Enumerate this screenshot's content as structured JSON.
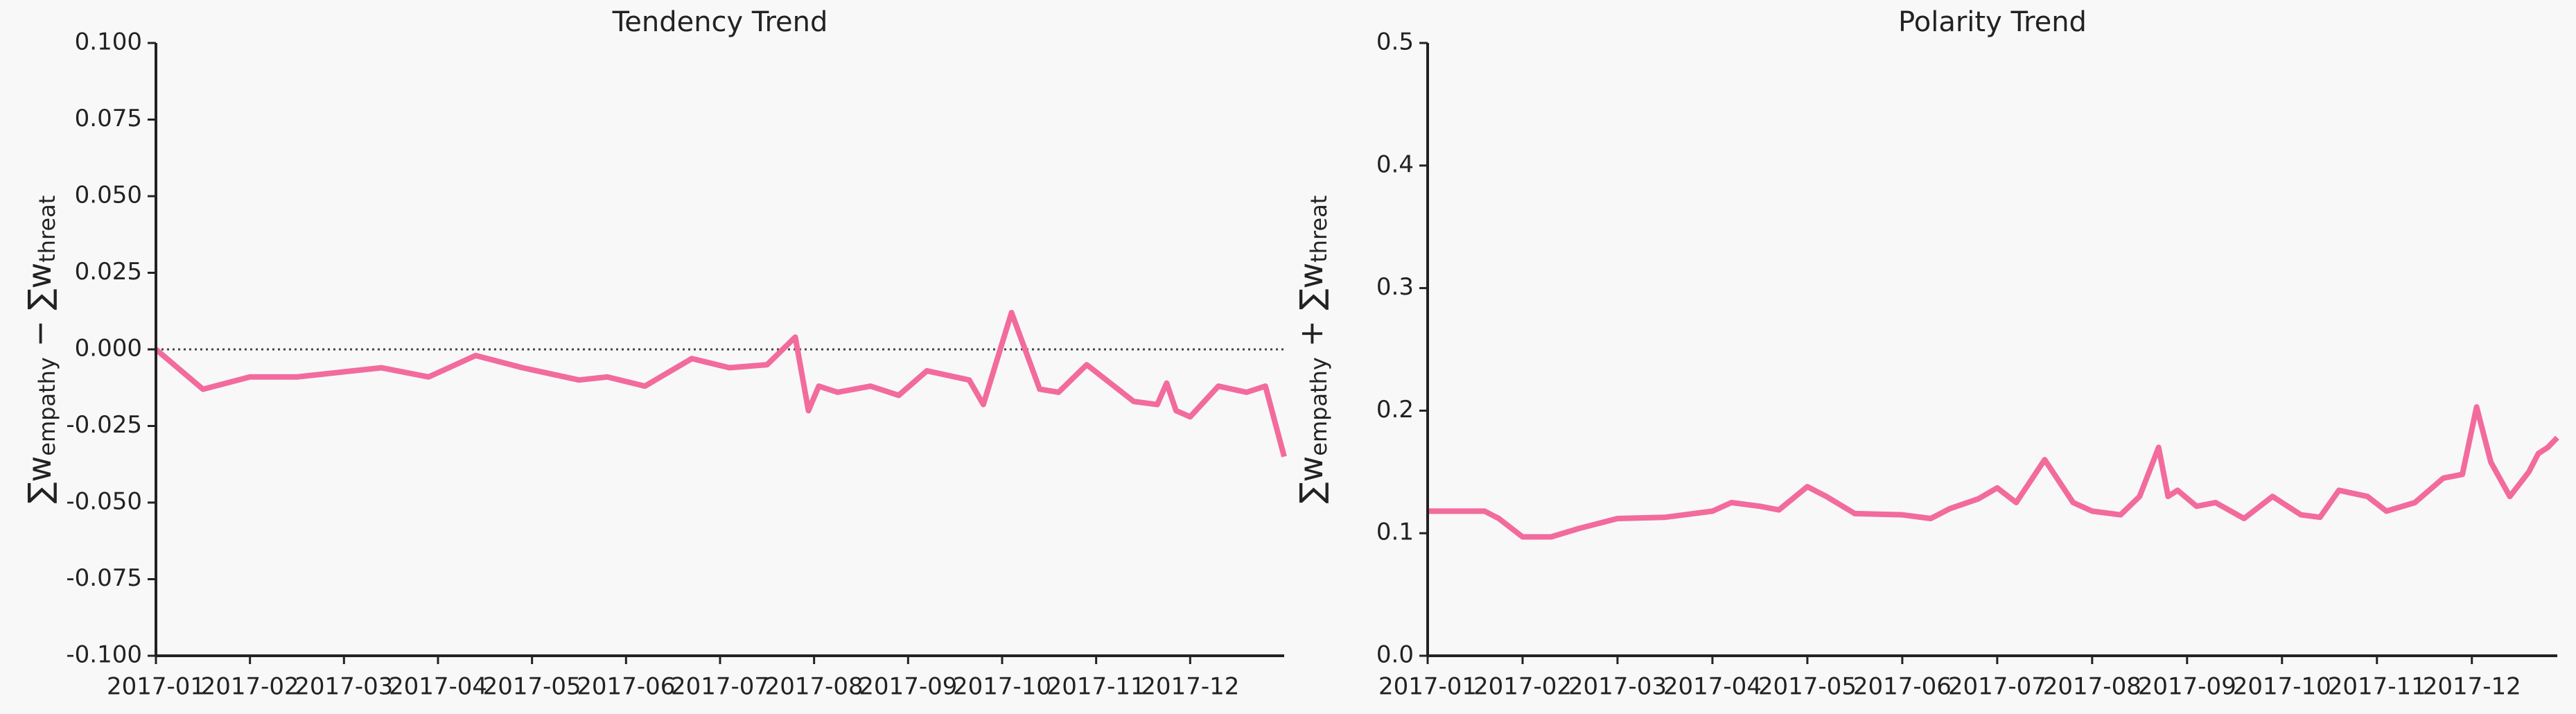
{
  "chart_data": [
    {
      "type": "line",
      "title": "Tendency Trend",
      "ylabel": [
        "∑w",
        "empathy",
        " − ∑w",
        "threat"
      ],
      "x": [
        0,
        0.5,
        1,
        1.5,
        2.4,
        2.9,
        3.4,
        3.9,
        4.5,
        4.8,
        5.2,
        5.7,
        6.1,
        6.5,
        6.8,
        6.94,
        7.05,
        7.25,
        7.6,
        7.9,
        8.2,
        8.65,
        8.8,
        9.1,
        9.4,
        9.6,
        9.9,
        10.4,
        10.65,
        10.75,
        10.85,
        11,
        11.3,
        11.6,
        11.8,
        12
      ],
      "series": [
        {
          "color": "#f26b9c",
          "values": [
            0,
            -0.013,
            -0.009,
            -0.009,
            -0.006,
            -0.009,
            -0.002,
            -0.006,
            -0.01,
            -0.009,
            -0.012,
            -0.003,
            -0.006,
            -0.005,
            0.004,
            -0.02,
            -0.012,
            -0.014,
            -0.012,
            -0.015,
            -0.007,
            -0.01,
            -0.018,
            0.012,
            -0.013,
            -0.014,
            -0.005,
            -0.017,
            -0.018,
            -0.011,
            -0.02,
            -0.022,
            -0.012,
            -0.014,
            -0.012,
            -0.035
          ]
        }
      ],
      "xlim": [
        0,
        12
      ],
      "xticks": [
        {
          "value": 0,
          "label": "2017-01"
        },
        {
          "value": 1,
          "label": "2017-02"
        },
        {
          "value": 2,
          "label": "2017-03"
        },
        {
          "value": 3,
          "label": "2017-04"
        },
        {
          "value": 4,
          "label": "2017-05"
        },
        {
          "value": 5,
          "label": "2017-06"
        },
        {
          "value": 6,
          "label": "2017-07"
        },
        {
          "value": 7,
          "label": "2017-08"
        },
        {
          "value": 8,
          "label": "2017-09"
        },
        {
          "value": 9,
          "label": "2017-10"
        },
        {
          "value": 10,
          "label": "2017-11"
        },
        {
          "value": 11,
          "label": "2017-12"
        }
      ],
      "ylim": [
        -0.1,
        0.1
      ],
      "yticks": [
        {
          "value": -0.1,
          "label": "-0.100"
        },
        {
          "value": -0.075,
          "label": "-0.075"
        },
        {
          "value": -0.05,
          "label": "-0.050"
        },
        {
          "value": -0.025,
          "label": "-0.025"
        },
        {
          "value": 0,
          "label": "0.000"
        },
        {
          "value": 0.025,
          "label": "0.025"
        },
        {
          "value": 0.05,
          "label": "0.050"
        },
        {
          "value": 0.075,
          "label": "0.075"
        },
        {
          "value": 0.1,
          "label": "0.100"
        }
      ],
      "hline": 0
    },
    {
      "type": "line",
      "title": "Polarity Trend",
      "ylabel": [
        "∑w",
        "empathy",
        " + ∑w",
        "threat"
      ],
      "x": [
        0,
        0.6,
        0.75,
        1,
        1.3,
        1.6,
        2,
        2.5,
        3,
        3.2,
        3.5,
        3.7,
        4,
        4.2,
        4.5,
        5,
        5.3,
        5.5,
        5.8,
        6,
        6.2,
        6.5,
        6.8,
        7,
        7.3,
        7.5,
        7.7,
        7.8,
        7.9,
        8.1,
        8.3,
        8.6,
        8.9,
        9.2,
        9.4,
        9.6,
        9.9,
        10.1,
        10.4,
        10.7,
        10.9,
        11.05,
        11.2,
        11.4,
        11.6,
        11.7,
        11.8,
        11.9
      ],
      "series": [
        {
          "color": "#f26b9c",
          "values": [
            0.118,
            0.118,
            0.112,
            0.097,
            0.097,
            0.104,
            0.112,
            0.113,
            0.118,
            0.125,
            0.122,
            0.119,
            0.138,
            0.13,
            0.116,
            0.115,
            0.112,
            0.12,
            0.128,
            0.137,
            0.125,
            0.16,
            0.125,
            0.118,
            0.115,
            0.13,
            0.17,
            0.13,
            0.135,
            0.122,
            0.125,
            0.112,
            0.13,
            0.115,
            0.113,
            0.135,
            0.13,
            0.118,
            0.125,
            0.145,
            0.148,
            0.203,
            0.158,
            0.13,
            0.15,
            0.165,
            0.17,
            0.178
          ]
        }
      ],
      "xlim": [
        0,
        11.9
      ],
      "xticks": [
        {
          "value": 0,
          "label": "2017-01"
        },
        {
          "value": 1,
          "label": "2017-02"
        },
        {
          "value": 2,
          "label": "2017-03"
        },
        {
          "value": 3,
          "label": "2017-04"
        },
        {
          "value": 4,
          "label": "2017-05"
        },
        {
          "value": 5,
          "label": "2017-06"
        },
        {
          "value": 6,
          "label": "2017-07"
        },
        {
          "value": 7,
          "label": "2017-08"
        },
        {
          "value": 8,
          "label": "2017-09"
        },
        {
          "value": 9,
          "label": "2017-10"
        },
        {
          "value": 10,
          "label": "2017-11"
        },
        {
          "value": 11,
          "label": "2017-12"
        }
      ],
      "ylim": [
        0,
        0.5
      ],
      "yticks": [
        {
          "value": 0,
          "label": "0.0"
        },
        0.1,
        0.2,
        0.3,
        0.4,
        0.5
      ]
    }
  ]
}
